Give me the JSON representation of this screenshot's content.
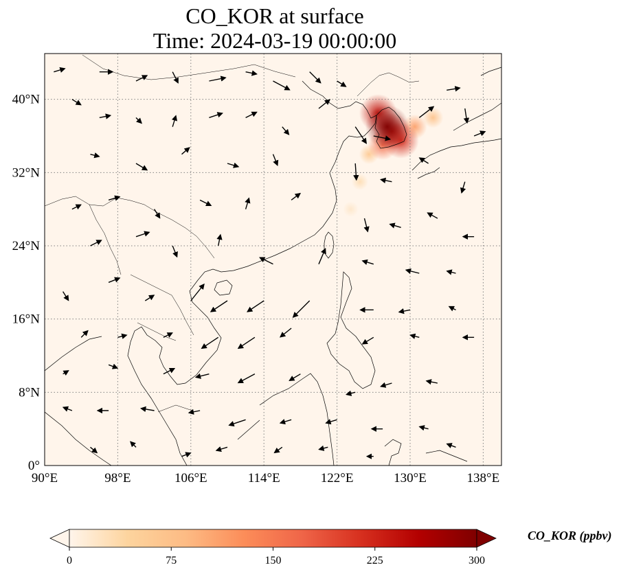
{
  "title": {
    "line1": "CO_KOR at surface",
    "line2": "Time: 2024-03-19 00:00:00"
  },
  "map": {
    "extent": {
      "lon": [
        90,
        140
      ],
      "lat": [
        0,
        45
      ]
    },
    "lon_ticks": [
      {
        "value": 90,
        "label": "90°E"
      },
      {
        "value": 98,
        "label": "98°E"
      },
      {
        "value": 106,
        "label": "106°E"
      },
      {
        "value": 114,
        "label": "114°E"
      },
      {
        "value": 122,
        "label": "122°E"
      },
      {
        "value": 130,
        "label": "130°E"
      },
      {
        "value": 138,
        "label": "138°E"
      }
    ],
    "lat_ticks": [
      {
        "value": 0,
        "label": "0°"
      },
      {
        "value": 8,
        "label": "8°N"
      },
      {
        "value": 16,
        "label": "16°N"
      },
      {
        "value": 24,
        "label": "24°N"
      },
      {
        "value": 32,
        "label": "32°N"
      },
      {
        "value": 40,
        "label": "40°N"
      }
    ],
    "gridlines": true,
    "background_color": "#fff5eb",
    "coastline_color": "#000000"
  },
  "concentration_field": {
    "variable": "CO_KOR",
    "blobs": [
      {
        "lon": 127.5,
        "lat": 37.0,
        "value": 300
      },
      {
        "lon": 126.5,
        "lat": 38.5,
        "value": 240
      },
      {
        "lon": 128.0,
        "lat": 36.5,
        "value": 230
      },
      {
        "lon": 129.0,
        "lat": 35.5,
        "value": 220
      },
      {
        "lon": 127.0,
        "lat": 35.0,
        "value": 160
      },
      {
        "lon": 130.5,
        "lat": 37.0,
        "value": 110
      },
      {
        "lon": 132.5,
        "lat": 38.0,
        "value": 70
      },
      {
        "lon": 125.5,
        "lat": 34.0,
        "value": 60
      },
      {
        "lon": 124.5,
        "lat": 31.0,
        "value": 30
      },
      {
        "lon": 123.5,
        "lat": 28.0,
        "value": 18
      }
    ]
  },
  "wind_vectors": [
    {
      "lon": 91,
      "lat": 43,
      "u": 1,
      "v": 0.3
    },
    {
      "lon": 93,
      "lat": 40,
      "u": 0.8,
      "v": -0.5
    },
    {
      "lon": 96,
      "lat": 43,
      "u": 1.2,
      "v": 0
    },
    {
      "lon": 100,
      "lat": 42,
      "u": 1,
      "v": 0.5
    },
    {
      "lon": 104,
      "lat": 43,
      "u": 0.5,
      "v": -1
    },
    {
      "lon": 108,
      "lat": 42,
      "u": 1.5,
      "v": 0.3
    },
    {
      "lon": 112,
      "lat": 43,
      "u": 1,
      "v": -0.2
    },
    {
      "lon": 115,
      "lat": 42,
      "u": 1.5,
      "v": -0.8
    },
    {
      "lon": 119,
      "lat": 43,
      "u": 1,
      "v": -1
    },
    {
      "lon": 122,
      "lat": 42,
      "u": 0.8,
      "v": -0.5
    },
    {
      "lon": 96,
      "lat": 38,
      "u": 1,
      "v": 0.2
    },
    {
      "lon": 100,
      "lat": 38,
      "u": 0.5,
      "v": -0.5
    },
    {
      "lon": 104,
      "lat": 37,
      "u": 0.3,
      "v": 1
    },
    {
      "lon": 108,
      "lat": 38,
      "u": 1.2,
      "v": 0.4
    },
    {
      "lon": 112,
      "lat": 38,
      "u": 1,
      "v": 0.5
    },
    {
      "lon": 116,
      "lat": 37,
      "u": 0.6,
      "v": -0.7
    },
    {
      "lon": 120,
      "lat": 39,
      "u": 1,
      "v": 0.8
    },
    {
      "lon": 124,
      "lat": 37,
      "u": 1,
      "v": -1.5
    },
    {
      "lon": 126,
      "lat": 36,
      "u": 1.5,
      "v": -0.3
    },
    {
      "lon": 131,
      "lat": 38,
      "u": 1.3,
      "v": 1
    },
    {
      "lon": 134,
      "lat": 41,
      "u": 1.2,
      "v": 0.2
    },
    {
      "lon": 136,
      "lat": 39,
      "u": 0.2,
      "v": -1.3
    },
    {
      "lon": 137,
      "lat": 36,
      "u": 1,
      "v": 0.4
    },
    {
      "lon": 95,
      "lat": 34,
      "u": 0.8,
      "v": -0.2
    },
    {
      "lon": 100,
      "lat": 33,
      "u": 1,
      "v": -0.6
    },
    {
      "lon": 105,
      "lat": 34,
      "u": 0.7,
      "v": 0.6
    },
    {
      "lon": 110,
      "lat": 33,
      "u": 1,
      "v": -0.3
    },
    {
      "lon": 115,
      "lat": 34,
      "u": 0.4,
      "v": -1
    },
    {
      "lon": 124,
      "lat": 33,
      "u": 0.1,
      "v": -1.5
    },
    {
      "lon": 128,
      "lat": 31,
      "u": -1,
      "v": 0.2
    },
    {
      "lon": 132,
      "lat": 33,
      "u": -0.8,
      "v": 0.5
    },
    {
      "lon": 136,
      "lat": 31,
      "u": -0.3,
      "v": -1
    },
    {
      "lon": 93,
      "lat": 28,
      "u": 0.8,
      "v": 0.4
    },
    {
      "lon": 97,
      "lat": 29,
      "u": 1,
      "v": 0.3
    },
    {
      "lon": 102,
      "lat": 28,
      "u": 0.5,
      "v": -0.8
    },
    {
      "lon": 107,
      "lat": 29,
      "u": 1,
      "v": -0.5
    },
    {
      "lon": 112,
      "lat": 28,
      "u": 0.3,
      "v": 1
    },
    {
      "lon": 117,
      "lat": 29,
      "u": 0.8,
      "v": 0.6
    },
    {
      "lon": 125,
      "lat": 27,
      "u": 0.3,
      "v": -1.2
    },
    {
      "lon": 129,
      "lat": 26,
      "u": -1,
      "v": 0.3
    },
    {
      "lon": 133,
      "lat": 27,
      "u": -0.9,
      "v": 0.5
    },
    {
      "lon": 137,
      "lat": 25,
      "u": -1,
      "v": 0
    },
    {
      "lon": 95,
      "lat": 24,
      "u": 1,
      "v": 0.5
    },
    {
      "lon": 100,
      "lat": 25,
      "u": 1.2,
      "v": 0.4
    },
    {
      "lon": 104,
      "lat": 24,
      "u": 0.4,
      "v": -1
    },
    {
      "lon": 109,
      "lat": 24,
      "u": 0.2,
      "v": 1
    },
    {
      "lon": 115,
      "lat": 22,
      "u": -1.2,
      "v": 0.6
    },
    {
      "lon": 120,
      "lat": 22,
      "u": 0.6,
      "v": 1.4
    },
    {
      "lon": 126,
      "lat": 22,
      "u": -1,
      "v": 0.3
    },
    {
      "lon": 131,
      "lat": 21,
      "u": -1.2,
      "v": 0.3
    },
    {
      "lon": 135,
      "lat": 21,
      "u": -0.8,
      "v": 0.2
    },
    {
      "lon": 92,
      "lat": 19,
      "u": 0.5,
      "v": -0.8
    },
    {
      "lon": 97,
      "lat": 20,
      "u": 1,
      "v": 0.4
    },
    {
      "lon": 101,
      "lat": 18,
      "u": 0.8,
      "v": 0.5
    },
    {
      "lon": 106,
      "lat": 18,
      "u": 1.2,
      "v": 1.5
    },
    {
      "lon": 110,
      "lat": 18,
      "u": -1.5,
      "v": -1
    },
    {
      "lon": 114,
      "lat": 18,
      "u": -1.5,
      "v": -1
    },
    {
      "lon": 119,
      "lat": 18,
      "u": -1.5,
      "v": -1.5
    },
    {
      "lon": 126,
      "lat": 17,
      "u": -1.2,
      "v": 0
    },
    {
      "lon": 130,
      "lat": 17,
      "u": -1,
      "v": -0.2
    },
    {
      "lon": 135,
      "lat": 17,
      "u": -0.6,
      "v": 0.3
    },
    {
      "lon": 94,
      "lat": 14,
      "u": 0.6,
      "v": 0.6
    },
    {
      "lon": 98,
      "lat": 14,
      "u": 0.8,
      "v": 0.2
    },
    {
      "lon": 103,
      "lat": 14,
      "u": 0.8,
      "v": 0.4
    },
    {
      "lon": 109,
      "lat": 14,
      "u": -1.5,
      "v": -1
    },
    {
      "lon": 113,
      "lat": 14,
      "u": -1.5,
      "v": -1
    },
    {
      "lon": 117,
      "lat": 15,
      "u": -1,
      "v": -0.8
    },
    {
      "lon": 126,
      "lat": 14,
      "u": -1,
      "v": -0.6
    },
    {
      "lon": 131,
      "lat": 14,
      "u": -0.8,
      "v": 0.2
    },
    {
      "lon": 137,
      "lat": 14,
      "u": -1,
      "v": 0
    },
    {
      "lon": 92,
      "lat": 10,
      "u": 0.5,
      "v": 0.3
    },
    {
      "lon": 97,
      "lat": 11,
      "u": 0.8,
      "v": -0.3
    },
    {
      "lon": 103,
      "lat": 10,
      "u": 1,
      "v": 0.5
    },
    {
      "lon": 108,
      "lat": 10,
      "u": -1.2,
      "v": -0.3
    },
    {
      "lon": 113,
      "lat": 10,
      "u": -1.5,
      "v": -0.8
    },
    {
      "lon": 118,
      "lat": 10,
      "u": -1,
      "v": -0.6
    },
    {
      "lon": 124,
      "lat": 8,
      "u": -0.8,
      "v": -0.2
    },
    {
      "lon": 128,
      "lat": 9,
      "u": -1,
      "v": -0.3
    },
    {
      "lon": 133,
      "lat": 9,
      "u": -1,
      "v": 0.2
    },
    {
      "lon": 93,
      "lat": 6,
      "u": -0.8,
      "v": 0.3
    },
    {
      "lon": 97,
      "lat": 6,
      "u": -1,
      "v": 0
    },
    {
      "lon": 102,
      "lat": 6,
      "u": -1.2,
      "v": 0.2
    },
    {
      "lon": 107,
      "lat": 6,
      "u": -1,
      "v": -0.2
    },
    {
      "lon": 112,
      "lat": 5,
      "u": -1.5,
      "v": -0.5
    },
    {
      "lon": 117,
      "lat": 5,
      "u": -1,
      "v": -0.3
    },
    {
      "lon": 122,
      "lat": 5,
      "u": -1,
      "v": -0.3
    },
    {
      "lon": 127,
      "lat": 4,
      "u": -1,
      "v": 0
    },
    {
      "lon": 132,
      "lat": 4,
      "u": -0.8,
      "v": 0.2
    },
    {
      "lon": 95,
      "lat": 2,
      "u": 0.6,
      "v": -0.5
    },
    {
      "lon": 100,
      "lat": 2,
      "u": -0.5,
      "v": 0.5
    },
    {
      "lon": 105,
      "lat": 1,
      "u": 0.8,
      "v": 0.3
    },
    {
      "lon": 110,
      "lat": 2,
      "u": -1,
      "v": -0.3
    },
    {
      "lon": 116,
      "lat": 2,
      "u": -0.7,
      "v": -0.5
    },
    {
      "lon": 121,
      "lat": 2,
      "u": -0.8,
      "v": -0.2
    },
    {
      "lon": 126,
      "lat": 1,
      "u": -0.6,
      "v": 0
    },
    {
      "lon": 135,
      "lat": 2,
      "u": -0.8,
      "v": 0.3
    }
  ],
  "colorbar": {
    "label": "CO_KOR (ppbv)",
    "min": 0,
    "max": 300,
    "extend": "both",
    "ticks": [
      {
        "value": 0,
        "label": "0"
      },
      {
        "value": 75,
        "label": "75"
      },
      {
        "value": 150,
        "label": "150"
      },
      {
        "value": 225,
        "label": "225"
      },
      {
        "value": 300,
        "label": "300"
      }
    ],
    "colormap": [
      "#fff5eb",
      "#fdd49e",
      "#fdbb84",
      "#fc8d59",
      "#ef6548",
      "#d7301f",
      "#b30000",
      "#7f0000"
    ]
  }
}
